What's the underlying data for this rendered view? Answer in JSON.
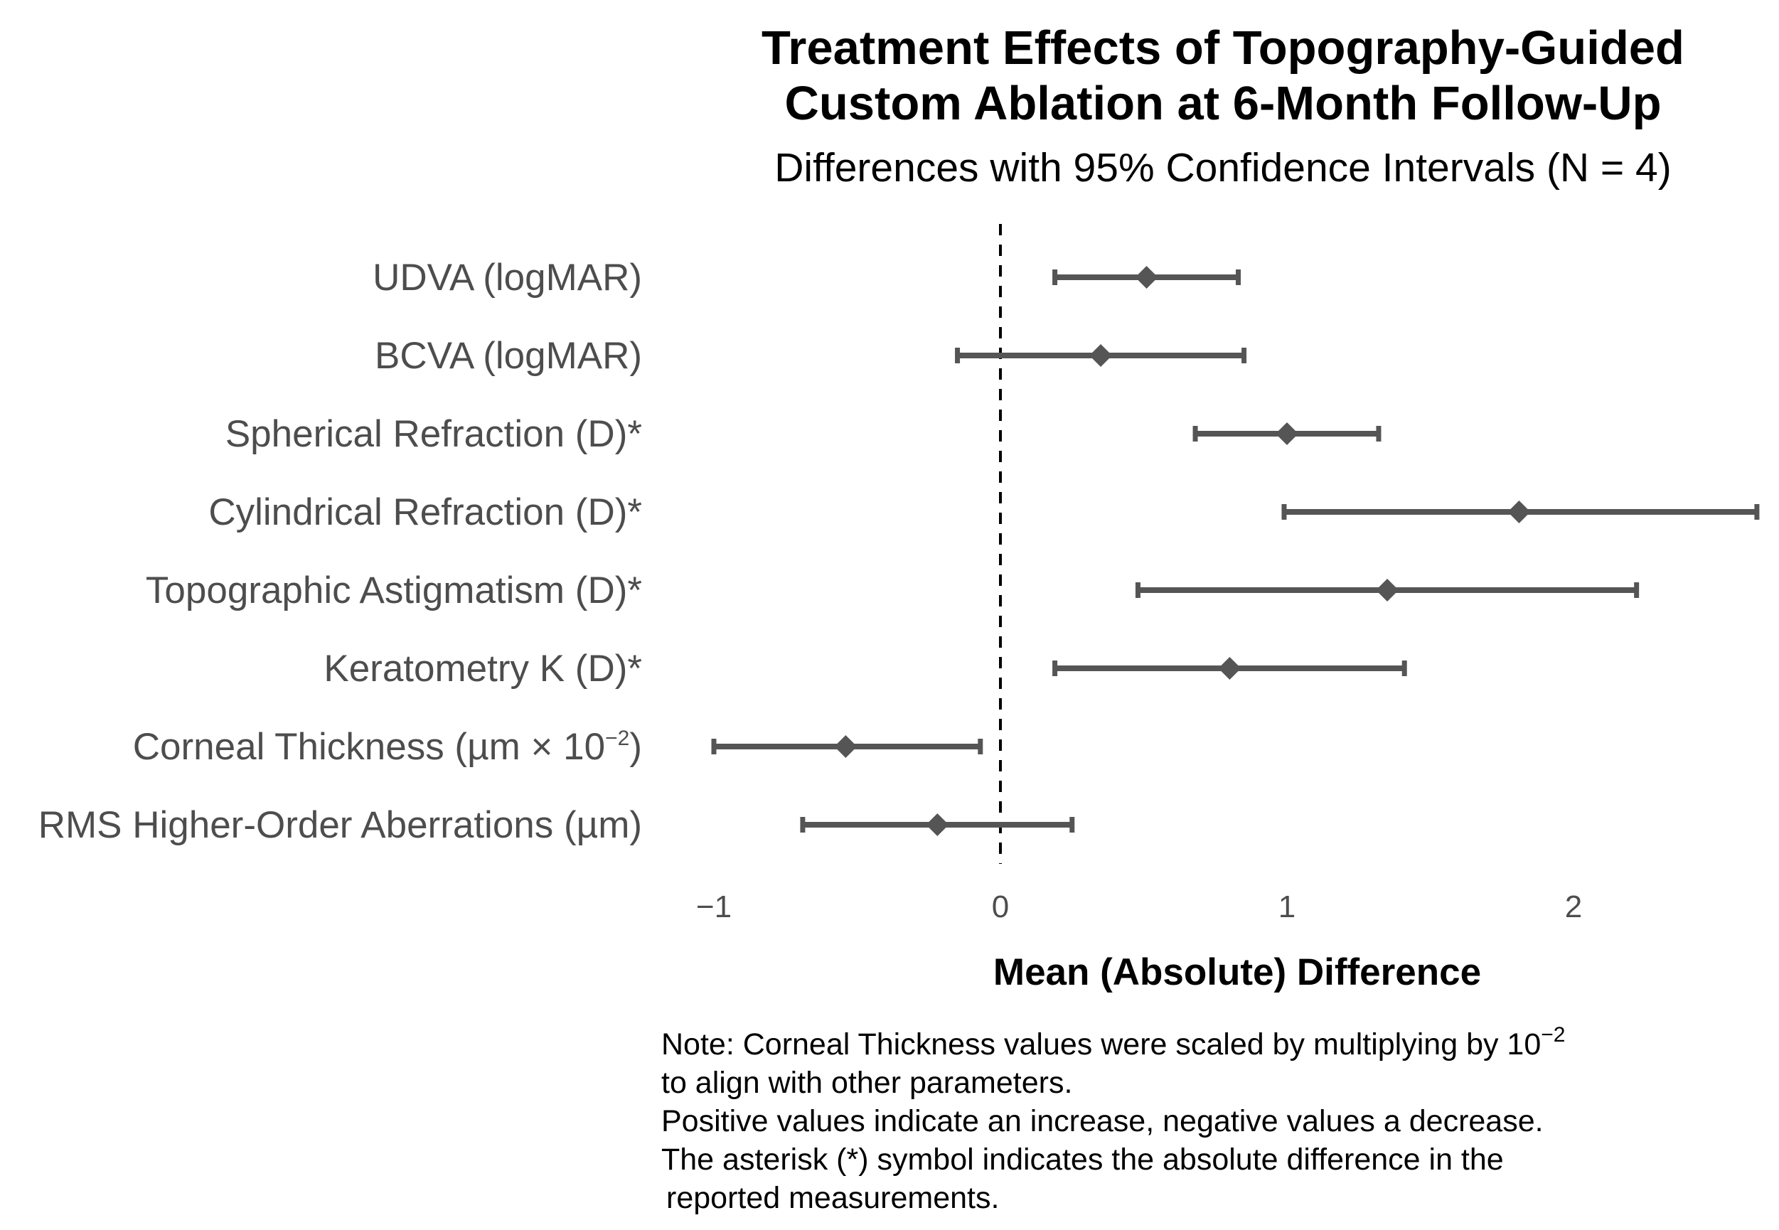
{
  "chart_data": {
    "type": "forest",
    "title_lines": [
      "Treatment Effects of Topography-Guided",
      "Custom Ablation at 6-Month Follow-Up"
    ],
    "subtitle": "Differences with 95% Confidence Intervals (N = 4)",
    "xlabel": "Mean (Absolute) Difference",
    "xlim": [
      -1.0,
      2.65
    ],
    "ticks": [
      {
        "value": -1,
        "label": "−1"
      },
      {
        "value": 0,
        "label": "0"
      },
      {
        "value": 1,
        "label": "1"
      },
      {
        "value": 2,
        "label": "2"
      }
    ],
    "reference_line": 0,
    "rows": [
      {
        "label": "UDVA (logMAR)",
        "label_suffix": "",
        "label_tail": "",
        "mean": 0.51,
        "lower": 0.19,
        "upper": 0.83
      },
      {
        "label": "BCVA (logMAR)",
        "label_suffix": "",
        "label_tail": "",
        "mean": 0.35,
        "lower": -0.15,
        "upper": 0.85
      },
      {
        "label": "Spherical Refraction (D)*",
        "label_suffix": "",
        "label_tail": "",
        "mean": 1.0,
        "lower": 0.68,
        "upper": 1.32
      },
      {
        "label": "Cylindrical Refraction (D)*",
        "label_suffix": "",
        "label_tail": "",
        "mean": 1.81,
        "lower": 0.99,
        "upper": 2.64
      },
      {
        "label": "Topographic Astigmatism (D)*",
        "label_suffix": "",
        "label_tail": "",
        "mean": 1.35,
        "lower": 0.48,
        "upper": 2.22
      },
      {
        "label": "Keratometry K (D)*",
        "label_suffix": "",
        "label_tail": "",
        "mean": 0.8,
        "lower": 0.19,
        "upper": 1.41
      },
      {
        "label": "Corneal Thickness (µm × 10",
        "label_suffix": "−2",
        "label_tail": ")",
        "mean": -0.54,
        "lower": -1.0,
        "upper": -0.07
      },
      {
        "label": "RMS Higher-Order Aberrations (µm)",
        "label_suffix": "",
        "label_tail": "",
        "mean": -0.22,
        "lower": -0.69,
        "upper": 0.25
      }
    ]
  },
  "note": {
    "line1_pre": "Note: Corneal Thickness values were scaled by multiplying by 10",
    "line1_sup": "−2",
    "line2": "to align with other parameters.",
    "line3": "Positive values indicate an increase, negative values a decrease.",
    "line4": "The asterisk (*) symbol indicates the absolute difference in the",
    "line5": "reported measurements."
  },
  "colors": {
    "mark": "#555555",
    "label": "#4d4d4d",
    "text": "#000000"
  }
}
